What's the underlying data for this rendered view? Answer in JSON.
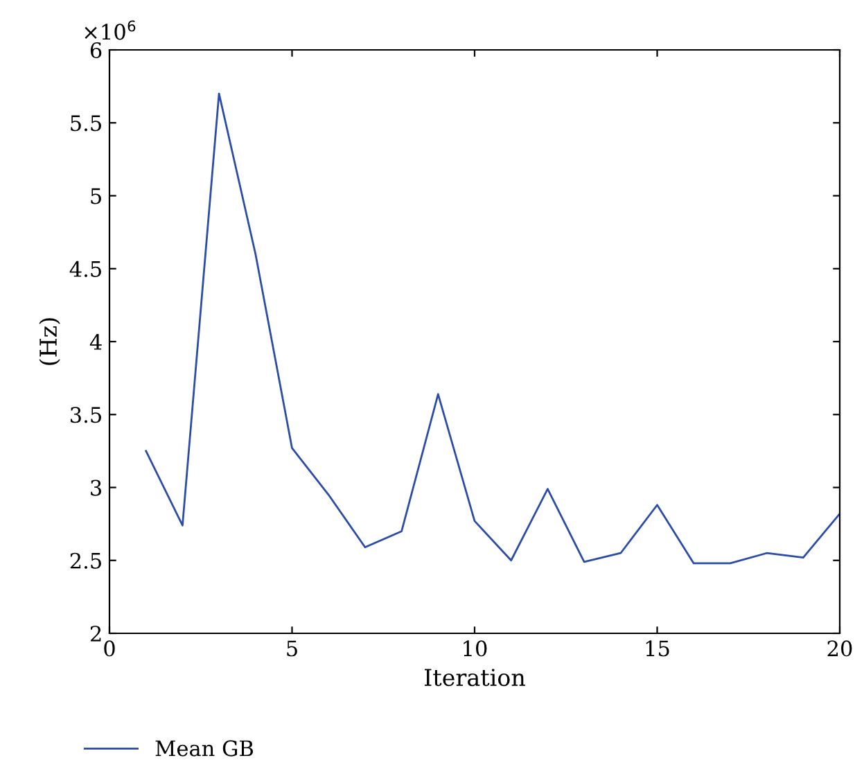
{
  "chart_data": {
    "type": "line",
    "xlabel": "Iteration",
    "ylabel": "(Hz)",
    "x": [
      1,
      2,
      3,
      4,
      5,
      6,
      7,
      8,
      9,
      10,
      11,
      12,
      13,
      14,
      15,
      16,
      17,
      18,
      19,
      20
    ],
    "series": [
      {
        "name": "Mean GB",
        "color": "#2b4ca8",
        "values": [
          3.25,
          2.74,
          5.7,
          4.6,
          3.27,
          2.95,
          2.59,
          2.7,
          3.64,
          2.77,
          2.5,
          2.99,
          2.49,
          2.55,
          2.88,
          2.48,
          2.48,
          2.55,
          2.52,
          2.82
        ]
      }
    ],
    "xlim": [
      0,
      20
    ],
    "xticks": [
      0,
      5,
      10,
      15,
      20
    ],
    "ylim": [
      2,
      6
    ],
    "yticks": [
      2,
      2.5,
      3,
      3.5,
      4,
      4.5,
      5,
      5.5,
      6
    ],
    "annotations": [
      "×10$^{6}$"
    ],
    "legend": "bottom",
    "grid": false,
    "marker": "none",
    "line_style": "solid"
  }
}
